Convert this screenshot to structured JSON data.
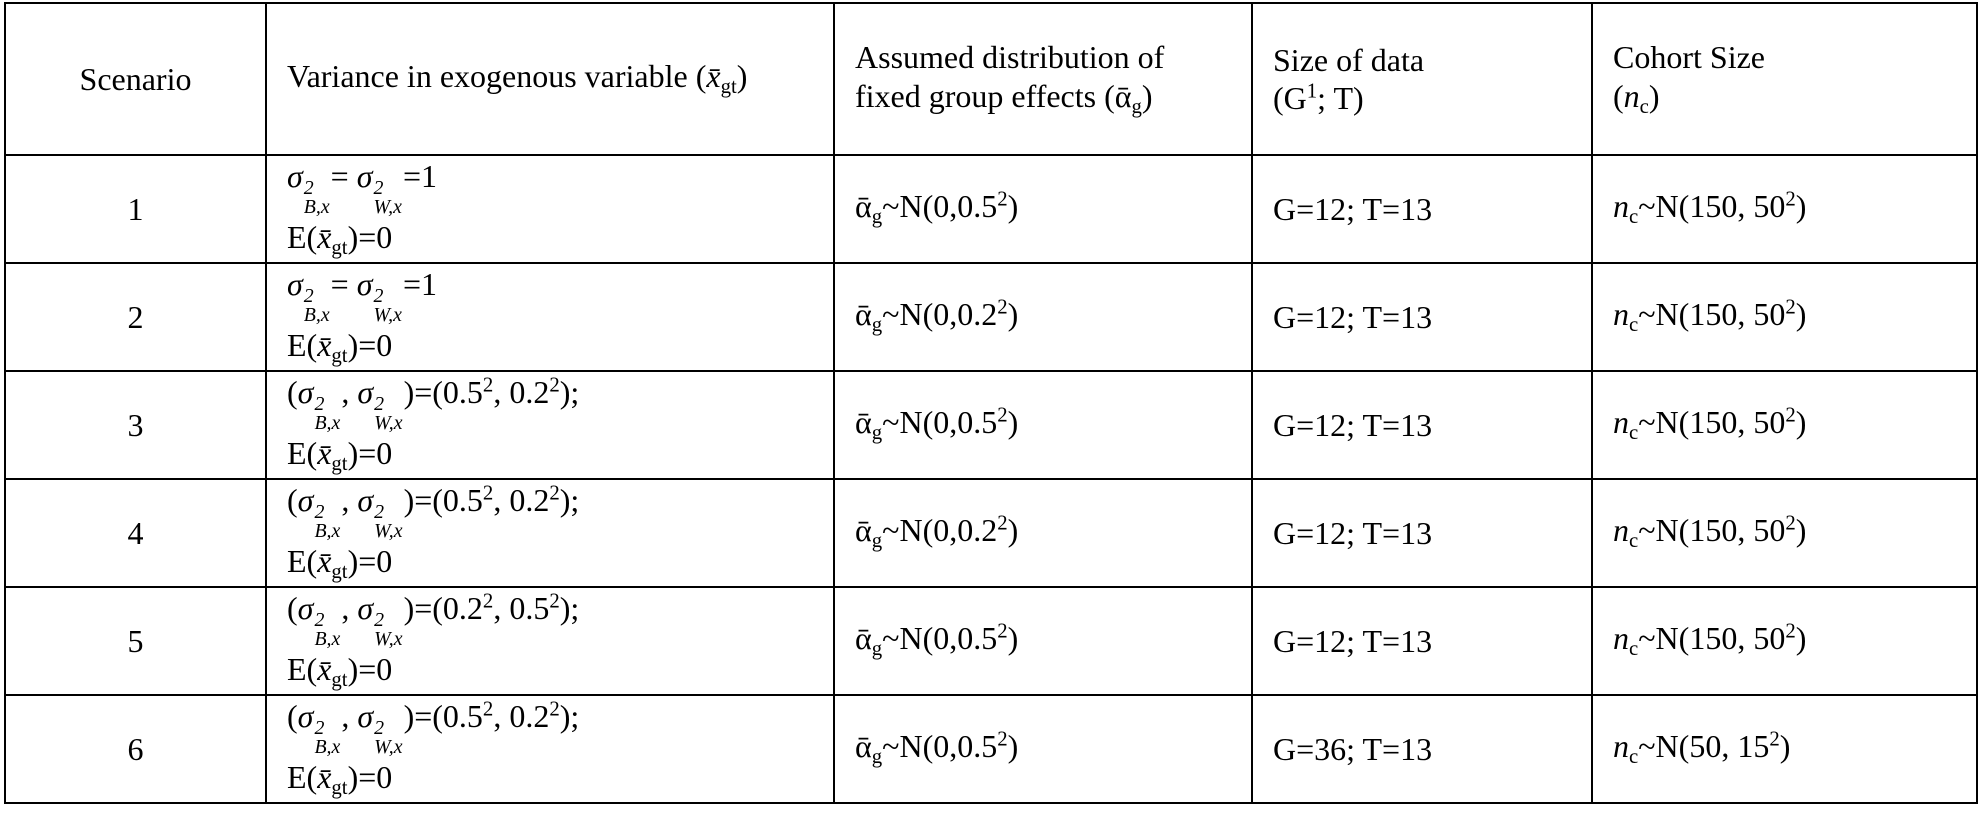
{
  "table": {
    "header": [
      [
        "Scenario"
      ],
      [
        "Variance in exogenous variable (",
        "x̄",
        "gt",
        ")"
      ],
      [
        "Assumed distribution of fixed group effects (",
        "ᾱ",
        "g",
        ")"
      ],
      [
        "Size of data",
        "(G",
        "1",
        "; T)"
      ],
      [
        "Cohort Size",
        "(",
        "n",
        "c",
        ")"
      ]
    ],
    "rows": [
      [
        [
          "1"
        ],
        [
          "σ",
          "2",
          "B,x",
          "= ",
          "σ",
          "2",
          "W,x",
          "=1",
          "E(",
          "x̄",
          "gt",
          ")=0"
        ],
        [
          "ᾱ",
          "g",
          "~N(0,0.5",
          "2",
          ")"
        ],
        [
          "G=12; T=13"
        ],
        [
          "n",
          "c",
          "~N(150, 50",
          "2",
          ")"
        ]
      ],
      [
        [
          "2"
        ],
        [
          "σ",
          "2",
          "B,x",
          "= ",
          "σ",
          "2",
          "W,x",
          "=1",
          "E(",
          "x̄",
          "gt",
          ")=0"
        ],
        [
          "ᾱ",
          "g",
          "~N(0,0.2",
          "2",
          ")"
        ],
        [
          "G=12; T=13"
        ],
        [
          "n",
          "c",
          "~N(150, 50",
          "2",
          ")"
        ]
      ],
      [
        [
          "3"
        ],
        [
          "(",
          "σ",
          "2",
          "B,x",
          ", ",
          "σ",
          "2",
          "W,x",
          ")=(0.5",
          "2",
          ", 0.2",
          "2",
          ");",
          "E(",
          "x̄",
          "gt",
          ")=0"
        ],
        [
          "ᾱ",
          "g",
          "~N(0,0.5",
          "2",
          ")"
        ],
        [
          "G=12; T=13"
        ],
        [
          "n",
          "c",
          "~N(150, 50",
          "2",
          ")"
        ]
      ],
      [
        [
          "4"
        ],
        [
          "(",
          "σ",
          "2",
          "B,x",
          ", ",
          "σ",
          "2",
          "W,x",
          ")=(0.5",
          "2",
          ", 0.2",
          "2",
          ");",
          "E(",
          "x̄",
          "gt",
          ")=0"
        ],
        [
          "ᾱ",
          "g",
          "~N(0,0.2",
          "2",
          ")"
        ],
        [
          "G=12; T=13"
        ],
        [
          "n",
          "c",
          "~N(150, 50",
          "2",
          ")"
        ]
      ],
      [
        [
          "5"
        ],
        [
          "(",
          "σ",
          "2",
          "B,x",
          ", ",
          "σ",
          "2",
          "W,x",
          ")=(0.2",
          "2",
          ", 0.5",
          "2",
          ");",
          "E(",
          "x̄",
          "gt",
          ")=0"
        ],
        [
          "ᾱ",
          "g",
          "~N(0,0.5",
          "2",
          ")"
        ],
        [
          "G=12; T=13"
        ],
        [
          "n",
          "c",
          "~N(150, 50",
          "2",
          ")"
        ]
      ],
      [
        [
          "6"
        ],
        [
          "(",
          "σ",
          "2",
          "B,x",
          ", ",
          "σ",
          "2",
          "W,x",
          ")=(0.5",
          "2",
          ", 0.2",
          "2",
          ");",
          "E(",
          "x̄",
          "gt",
          ")=0"
        ],
        [
          "ᾱ",
          "g",
          "~N(0,0.5",
          "2",
          ")"
        ],
        [
          "G=36; T=13"
        ],
        [
          "n",
          "c",
          "~N(50, 15",
          "2",
          ")"
        ]
      ]
    ]
  }
}
